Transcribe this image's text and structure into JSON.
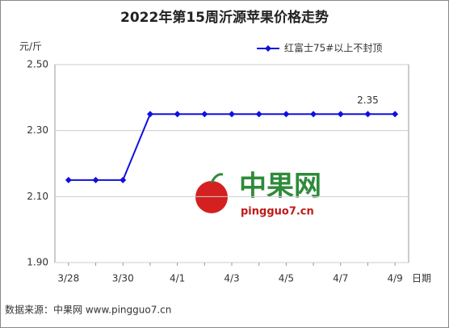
{
  "chart_data": {
    "type": "line",
    "title": "2022年第15周沂源苹果价格走势",
    "y_label": "元/斤",
    "x_label": "日期",
    "categories": [
      "3/28",
      null,
      "3/30",
      null,
      "4/1",
      null,
      "4/3",
      null,
      "4/5",
      null,
      "4/7",
      null,
      "4/9"
    ],
    "series": [
      {
        "name": "红富士75#以上不封顶",
        "color": "#1010e0",
        "values": [
          2.15,
          2.15,
          2.15,
          2.35,
          2.35,
          2.35,
          2.35,
          2.35,
          2.35,
          2.35,
          2.35,
          2.35,
          2.35
        ],
        "value_labels": [
          null,
          null,
          null,
          null,
          null,
          null,
          null,
          null,
          null,
          null,
          null,
          "2.35",
          null
        ]
      }
    ],
    "ylim": [
      1.9,
      2.5
    ],
    "yticks": [
      {
        "value": 1.9,
        "label": "1.90"
      },
      {
        "value": 2.1,
        "label": "2.10"
      },
      {
        "value": 2.3,
        "label": "2.30"
      },
      {
        "value": 2.5,
        "label": "2.50"
      }
    ],
    "grid": true,
    "legend": "top-right",
    "watermark": {
      "name": "中果网",
      "url": "pingguo7.cn"
    },
    "source": "数据来源：中果网 www.pingguo7.cn"
  }
}
